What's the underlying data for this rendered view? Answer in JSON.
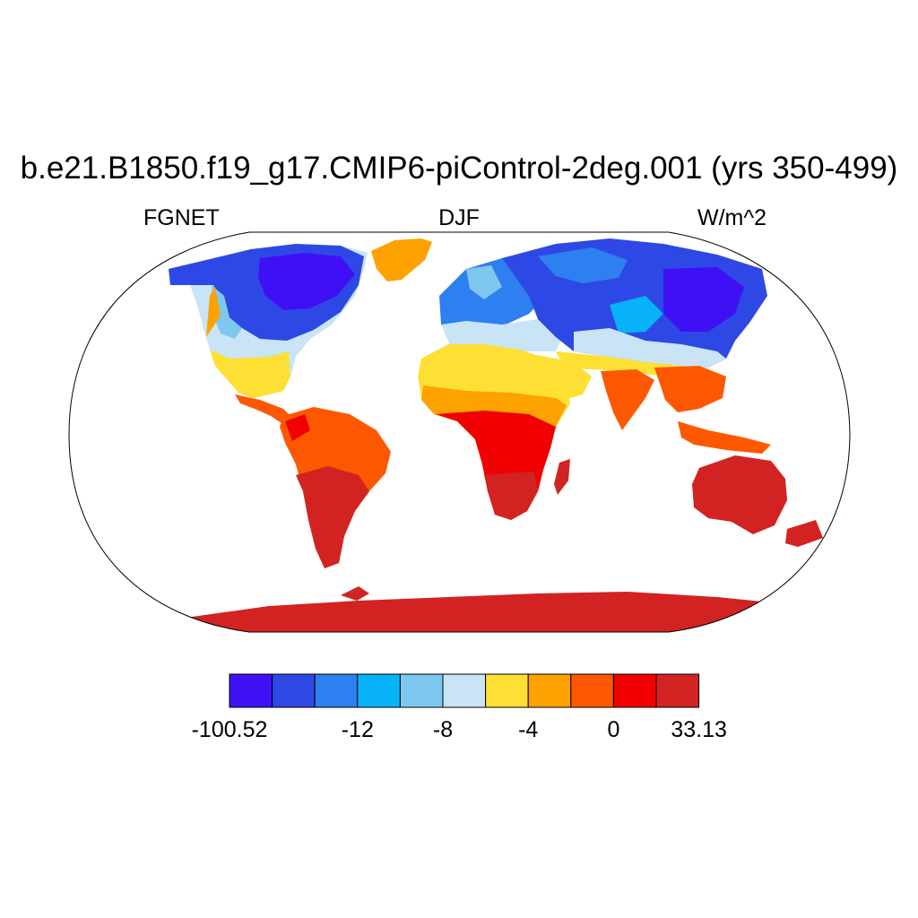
{
  "header": {
    "title": "b.e21.B1850.f19_g17.CMIP6-piControl-2deg.001 (yrs 350-499)",
    "left_label": "FGNET",
    "center_label": "DJF",
    "right_label": "W/m^2"
  },
  "colorbar": {
    "colors": [
      "#4010f5",
      "#2e48e6",
      "#2e7fef",
      "#08b2f8",
      "#7ec8ef",
      "#c8e4f6",
      "#fde033",
      "#fda200",
      "#fd5800",
      "#f00000",
      "#d32222"
    ],
    "labels": [
      {
        "text": "-100.52",
        "at_edge": 0
      },
      {
        "text": "-12",
        "at_edge": 3
      },
      {
        "text": "-8",
        "at_edge": 5
      },
      {
        "text": "-4",
        "at_edge": 7
      },
      {
        "text": "0",
        "at_edge": 9
      },
      {
        "text": "33.13",
        "at_edge": 11
      }
    ]
  },
  "map_colors": {
    "ocean": "#ffffff",
    "land_outline": "#000000",
    "frame": "#000000"
  }
}
